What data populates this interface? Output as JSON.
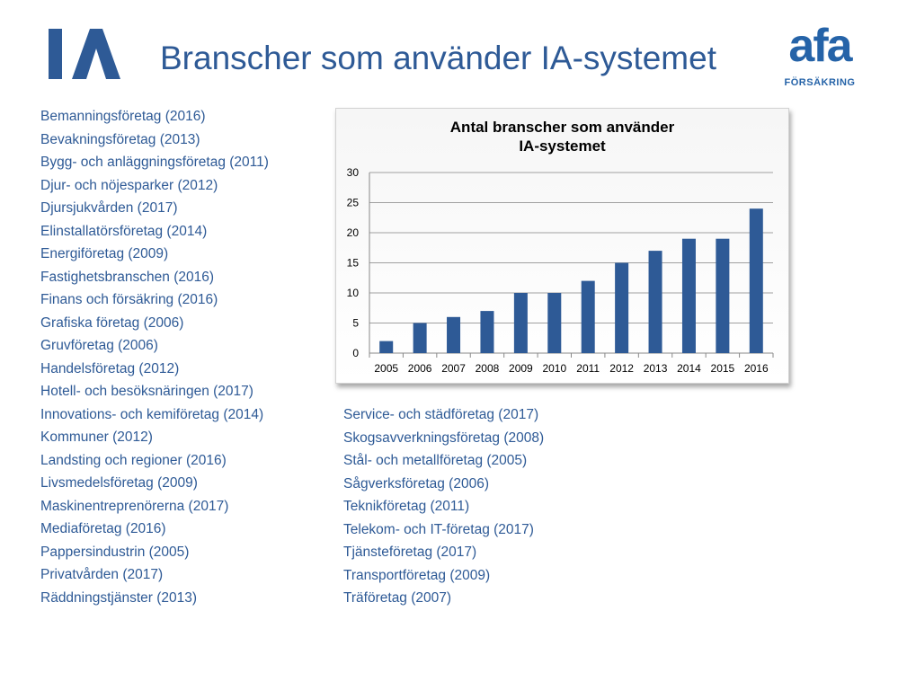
{
  "header": {
    "title": "Branscher som använder IA-systemet",
    "logo_left_text": "IA",
    "logo_right_text": "afa",
    "logo_right_subtext": "FÖRSÄKRING"
  },
  "colors": {
    "title": "#2e5a96",
    "list_text": "#2e5a96",
    "bar": "#2e5a96",
    "logo": "#2563a8"
  },
  "left_list": [
    "Bemanningsföretag (2016)",
    "Bevakningsföretag (2013)",
    "Bygg- och anläggningsföretag (2011)",
    "Djur- och nöjesparker (2012)",
    "Djursjukvården (2017)",
    "Elinstallatörsföretag (2014)",
    "Energiföretag (2009)",
    "Fastighetsbranschen (2016)",
    "Finans och försäkring (2016)",
    "Grafiska företag (2006)",
    "Gruvföretag (2006)",
    "Handelsföretag (2012)",
    "Hotell- och besöksnäringen (2017)",
    "Innovations- och kemiföretag (2014)",
    "Kommuner (2012)",
    "Landsting och regioner (2016)",
    "Livsmedelsföretag (2009)",
    "Maskinentreprenörerna (2017)",
    "Mediaföretag (2016)",
    "Pappersindustrin (2005)",
    "Privatvården (2017)",
    "Räddningstjänster (2013)"
  ],
  "right_list": [
    "Service- och städföretag (2017)",
    "Skogsavverkningsföretag (2008)",
    "Stål- och metallföretag (2005)",
    "Sågverksföretag (2006)",
    "Teknikföretag (2011)",
    "Telekom- och IT-företag (2017)",
    "Tjänsteföretag (2017)",
    "Transportföretag (2009)",
    "Träföretag (2007)"
  ],
  "chart_data": {
    "type": "bar",
    "title": "Antal branscher som använder IA-systemet",
    "title_lines": [
      "Antal branscher som använder",
      "IA-systemet"
    ],
    "categories": [
      "2005",
      "2006",
      "2007",
      "2008",
      "2009",
      "2010",
      "2011",
      "2012",
      "2013",
      "2014",
      "2015",
      "2016"
    ],
    "values": [
      2,
      5,
      6,
      7,
      10,
      10,
      12,
      15,
      17,
      19,
      19,
      24
    ],
    "xlabel": "",
    "ylabel": "",
    "ylim": [
      0,
      30
    ],
    "yticks": [
      0,
      5,
      10,
      15,
      20,
      25,
      30
    ],
    "grid": true,
    "legend": "none"
  }
}
